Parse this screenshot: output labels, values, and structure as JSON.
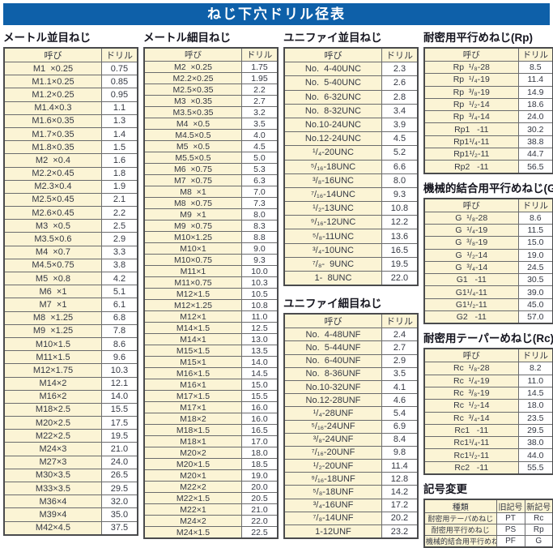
{
  "page": {
    "title": "ねじ下穴ドリル径表"
  },
  "colors": {
    "banner_blue": "#0e60a9",
    "cell_cream": "#fbf4d5",
    "border_dark": "#4a4b4d",
    "text_dark": "#343843"
  },
  "tables": {
    "metric_coarse": {
      "title": "メートル並目ねじ",
      "headers": [
        "呼び",
        "ドリル"
      ],
      "rows": [
        [
          "M1  ×0.25",
          "0.75"
        ],
        [
          "M1.1×0.25",
          "0.85"
        ],
        [
          "M1.2×0.25",
          "0.95"
        ],
        [
          "M1.4×0.3",
          "1.1"
        ],
        [
          "M1.6×0.35",
          "1.3"
        ],
        [
          "M1.7×0.35",
          "1.4"
        ],
        [
          "M1.8×0.35",
          "1.5"
        ],
        [
          "M2  ×0.4",
          "1.6"
        ],
        [
          "M2.2×0.45",
          "1.8"
        ],
        [
          "M2.3×0.4",
          "1.9"
        ],
        [
          "M2.5×0.45",
          "2.1"
        ],
        [
          "M2.6×0.45",
          "2.2"
        ],
        [
          "M3  ×0.5",
          "2.5"
        ],
        [
          "M3.5×0.6",
          "2.9"
        ],
        [
          "M4  ×0.7",
          "3.3"
        ],
        [
          "M4.5×0.75",
          "3.8"
        ],
        [
          "M5  ×0.8",
          "4.2"
        ],
        [
          "M6  ×1",
          "5.1"
        ],
        [
          "M7  ×1",
          "6.1"
        ],
        [
          "M8  ×1.25",
          "6.8"
        ],
        [
          "M9  ×1.25",
          "7.8"
        ],
        [
          "M10×1.5",
          "8.6"
        ],
        [
          "M11×1.5",
          "9.6"
        ],
        [
          "M12×1.75",
          "10.3"
        ],
        [
          "M14×2",
          "12.1"
        ],
        [
          "M16×2",
          "14.0"
        ],
        [
          "M18×2.5",
          "15.5"
        ],
        [
          "M20×2.5",
          "17.5"
        ],
        [
          "M22×2.5",
          "19.5"
        ],
        [
          "M24×3",
          "21.0"
        ],
        [
          "M27×3",
          "24.0"
        ],
        [
          "M30×3.5",
          "26.5"
        ],
        [
          "M33×3.5",
          "29.5"
        ],
        [
          "M36×4",
          "32.0"
        ],
        [
          "M39×4",
          "35.0"
        ],
        [
          "M42×4.5",
          "37.5"
        ]
      ]
    },
    "metric_fine": {
      "title": "メートル細目ねじ",
      "headers": [
        "呼び",
        "ドリル"
      ],
      "rows": [
        [
          "M2  ×0.25",
          "1.75"
        ],
        [
          "M2.2×0.25",
          "1.95"
        ],
        [
          "M2.5×0.35",
          "2.2"
        ],
        [
          "M3  ×0.35",
          "2.7"
        ],
        [
          "M3.5×0.35",
          "3.2"
        ],
        [
          "M4  ×0.5",
          "3.5"
        ],
        [
          "M4.5×0.5",
          "4.0"
        ],
        [
          "M5  ×0.5",
          "4.5"
        ],
        [
          "M5.5×0.5",
          "5.0"
        ],
        [
          "M6  ×0.75",
          "5.3"
        ],
        [
          "M7  ×0.75",
          "6.3"
        ],
        [
          "M8  ×1",
          "7.0"
        ],
        [
          "M8  ×0.75",
          "7.3"
        ],
        [
          "M9  ×1",
          "8.0"
        ],
        [
          "M9  ×0.75",
          "8.3"
        ],
        [
          "M10×1.25",
          "8.8"
        ],
        [
          "M10×1",
          "9.0"
        ],
        [
          "M10×0.75",
          "9.3"
        ],
        [
          "M11×1",
          "10.0"
        ],
        [
          "M11×0.75",
          "10.3"
        ],
        [
          "M12×1.5",
          "10.5"
        ],
        [
          "M12×1.25",
          "10.8"
        ],
        [
          "M12×1",
          "11.0"
        ],
        [
          "M14×1.5",
          "12.5"
        ],
        [
          "M14×1",
          "13.0"
        ],
        [
          "M15×1.5",
          "13.5"
        ],
        [
          "M15×1",
          "14.0"
        ],
        [
          "M16×1.5",
          "14.5"
        ],
        [
          "M16×1",
          "15.0"
        ],
        [
          "M17×1.5",
          "15.5"
        ],
        [
          "M17×1",
          "16.0"
        ],
        [
          "M18×2",
          "16.0"
        ],
        [
          "M18×1.5",
          "16.5"
        ],
        [
          "M18×1",
          "17.0"
        ],
        [
          "M20×2",
          "18.0"
        ],
        [
          "M20×1.5",
          "18.5"
        ],
        [
          "M20×1",
          "19.0"
        ],
        [
          "M22×2",
          "20.0"
        ],
        [
          "M22×1.5",
          "20.5"
        ],
        [
          "M22×1",
          "21.0"
        ],
        [
          "M24×2",
          "22.0"
        ],
        [
          "M24×1.5",
          "22.5"
        ]
      ]
    },
    "unified_coarse": {
      "title": "ユニファイ並目ねじ",
      "headers": [
        "呼び",
        "ドリル"
      ],
      "rows": [
        [
          "No.  4-40UNC",
          "2.3"
        ],
        [
          "No.  5-40UNC",
          "2.6"
        ],
        [
          "No.  6-32UNC",
          "2.8"
        ],
        [
          "No.  8-32UNC",
          "3.4"
        ],
        [
          "No.10-24UNC",
          "3.9"
        ],
        [
          "No.12-24UNC",
          "4.5"
        ],
        [
          "¹/₄-20UNC",
          "5.2"
        ],
        [
          "⁵/₁₆-18UNC",
          "6.6"
        ],
        [
          "³/₈-16UNC",
          "8.0"
        ],
        [
          "⁷/₁₆-14UNC",
          "9.3"
        ],
        [
          "¹/₂-13UNC",
          "10.8"
        ],
        [
          "⁹/₁₆-12UNC",
          "12.2"
        ],
        [
          "⁵/₈-11UNC",
          "13.6"
        ],
        [
          "³/₄-10UNC",
          "16.5"
        ],
        [
          "⁷/₈-  9UNC",
          "19.5"
        ],
        [
          "1-  8UNC",
          "22.0"
        ]
      ]
    },
    "unified_fine": {
      "title": "ユニファイ細目ねじ",
      "headers": [
        "呼び",
        "ドリル"
      ],
      "rows": [
        [
          "No.  4-48UNF",
          "2.4"
        ],
        [
          "No.  5-44UNF",
          "2.7"
        ],
        [
          "No.  6-40UNF",
          "2.9"
        ],
        [
          "No.  8-36UNF",
          "3.5"
        ],
        [
          "No.10-32UNF",
          "4.1"
        ],
        [
          "No.12-28UNF",
          "4.6"
        ],
        [
          "¹/₄-28UNF",
          "5.4"
        ],
        [
          "⁵/₁₆-24UNF",
          "6.9"
        ],
        [
          "³/₈-24UNF",
          "8.4"
        ],
        [
          "⁷/₁₆-20UNF",
          "9.8"
        ],
        [
          "¹/₂-20UNF",
          "11.4"
        ],
        [
          "⁹/₁₆-18UNF",
          "12.8"
        ],
        [
          "⁵/₈-18UNF",
          "14.2"
        ],
        [
          "³/₄-16UNF",
          "17.2"
        ],
        [
          "⁷/₈-14UNF",
          "20.2"
        ],
        [
          "1-12UNF",
          "23.2"
        ]
      ]
    },
    "rp_parallel": {
      "title": "耐密用平行めねじ(Rp)",
      "headers": [
        "呼び",
        "ドリル"
      ],
      "rows": [
        [
          "Rp  ¹/₈-28",
          "8.5"
        ],
        [
          "Rp  ¹/₄-19",
          "11.4"
        ],
        [
          "Rp  ³/₈-19",
          "14.9"
        ],
        [
          "Rp  ¹/₂-14",
          "18.6"
        ],
        [
          "Rp  ³/₄-14",
          "24.0"
        ],
        [
          "Rp1   -11",
          "30.2"
        ],
        [
          "Rp1¹/₄-11",
          "38.8"
        ],
        [
          "Rp1¹/₂-11",
          "44.7"
        ],
        [
          "Rp2   -11",
          "56.5"
        ]
      ]
    },
    "g_parallel": {
      "title": "機械的結合用平行めねじ(G)",
      "headers": [
        "呼び",
        "ドリル"
      ],
      "rows": [
        [
          "G  ¹/₈-28",
          "8.6"
        ],
        [
          "G  ¹/₄-19",
          "11.5"
        ],
        [
          "G  ³/₈-19",
          "15.0"
        ],
        [
          "G  ¹/₂-14",
          "19.0"
        ],
        [
          "G  ³/₄-14",
          "24.5"
        ],
        [
          "G1   -11",
          "30.5"
        ],
        [
          "G1¹/₄-11",
          "39.0"
        ],
        [
          "G1¹/₂-11",
          "45.0"
        ],
        [
          "G2   -11",
          "57.0"
        ]
      ]
    },
    "rc_taper": {
      "title": "耐密用テーパーめねじ(Rc)",
      "headers": [
        "呼び",
        "ドリル"
      ],
      "rows": [
        [
          "Rc  ¹/₈-28",
          "8.2"
        ],
        [
          "Rc  ¹/₄-19",
          "11.0"
        ],
        [
          "Rc  ³/₈-19",
          "14.5"
        ],
        [
          "Rc  ¹/₂-14",
          "18.0"
        ],
        [
          "Rc  ³/₄-14",
          "23.5"
        ],
        [
          "Rc1   -11",
          "29.5"
        ],
        [
          "Rc1¹/₄-11",
          "38.0"
        ],
        [
          "Rc1¹/₂-11",
          "44.0"
        ],
        [
          "Rc2   -11",
          "55.5"
        ]
      ]
    },
    "symbol_change": {
      "title": "記号変更",
      "headers": [
        "種類",
        "旧記号",
        "新記号"
      ],
      "rows": [
        [
          "耐密用テーパめねじ",
          "PT",
          "Rc"
        ],
        [
          "耐密用平行めねじ",
          "PS",
          "Rp"
        ],
        [
          "機械的結合用平行めねじ",
          "PF",
          "G"
        ]
      ]
    }
  }
}
